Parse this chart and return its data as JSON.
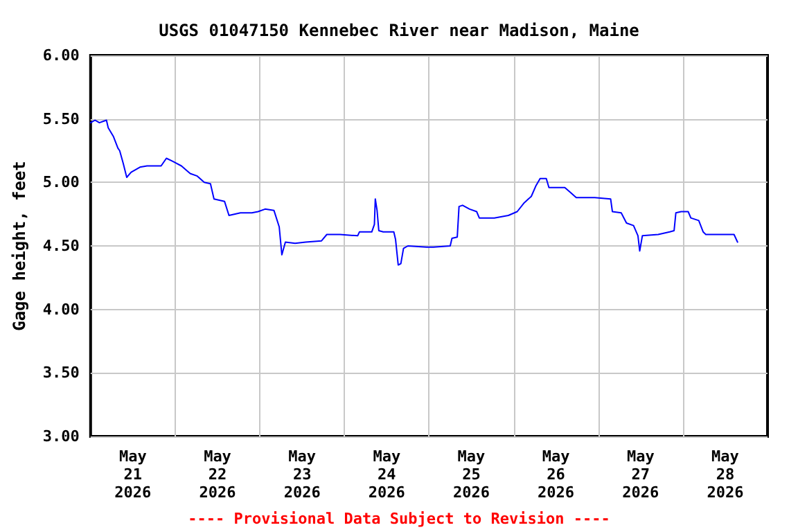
{
  "chart_data": {
    "type": "line",
    "title": "USGS 01047150 Kennebec River near Madison, Maine",
    "ylabel": "Gage height, feet",
    "annotations": [
      "---- Provisional Data Subject to Revision ----"
    ],
    "xlim": [
      "2026-05-21",
      "2026-05-29"
    ],
    "xticks": [
      {
        "value": "2026-05-21T12:00",
        "label": "May\n21\n2026"
      },
      {
        "value": "2026-05-22",
        "label": null
      },
      {
        "value": "2026-05-22T12:00",
        "label": "May\n22\n2026"
      },
      {
        "value": "2026-05-23",
        "label": null
      },
      {
        "value": "2026-05-23T12:00",
        "label": "May\n23\n2026"
      },
      {
        "value": "2026-05-24",
        "label": null
      },
      {
        "value": "2026-05-24T12:00",
        "label": "May\n24\n2026"
      },
      {
        "value": "2026-05-25",
        "label": null
      },
      {
        "value": "2026-05-25T12:00",
        "label": "May\n25\n2026"
      },
      {
        "value": "2026-05-26",
        "label": null
      },
      {
        "value": "2026-05-26T12:00",
        "label": "May\n26\n2026"
      },
      {
        "value": "2026-05-27",
        "label": null
      },
      {
        "value": "2026-05-27T12:00",
        "label": "May\n27\n2026"
      },
      {
        "value": "2026-05-28",
        "label": null
      },
      {
        "value": "2026-05-28T12:00",
        "label": "May\n28\n2026"
      }
    ],
    "ylim": [
      3,
      6
    ],
    "yticks": [
      {
        "value": 3,
        "label": "3.00"
      },
      {
        "value": 3.5,
        "label": "3.50"
      },
      {
        "value": 4,
        "label": "4.00"
      },
      {
        "value": 4.5,
        "label": "4.50"
      },
      {
        "value": 5,
        "label": "5.00"
      },
      {
        "value": 5.5,
        "label": "5.50"
      },
      {
        "value": 6,
        "label": "6.00"
      }
    ],
    "grid": true,
    "marker": "none",
    "line_style": "solid",
    "x": [
      "2026-05-21T00:00",
      "2026-05-21T01:15",
      "2026-05-21T02:30",
      "2026-05-21T04:30",
      "2026-05-21T05:00",
      "2026-05-21T06:30",
      "2026-05-21T07:45",
      "2026-05-21T08:15",
      "2026-05-21T09:15",
      "2026-05-21T10:15",
      "2026-05-21T11:30",
      "2026-05-21T14:00",
      "2026-05-21T16:00",
      "2026-05-21T20:00",
      "2026-05-21T21:30",
      "2026-05-21T23:00",
      "2026-05-22T01:45",
      "2026-05-22T04:15",
      "2026-05-22T06:15",
      "2026-05-22T08:15",
      "2026-05-22T10:00",
      "2026-05-22T11:00",
      "2026-05-22T14:00",
      "2026-05-22T15:15",
      "2026-05-22T18:30",
      "2026-05-22T21:45",
      "2026-05-22T23:30",
      "2026-05-23T01:30",
      "2026-05-23T04:00",
      "2026-05-23T05:30",
      "2026-05-23T06:15",
      "2026-05-23T07:15",
      "2026-05-23T10:00",
      "2026-05-23T13:00",
      "2026-05-23T17:30",
      "2026-05-23T19:00",
      "2026-05-23T22:45",
      "2026-05-24T03:45",
      "2026-05-24T04:15",
      "2026-05-24T07:45",
      "2026-05-24T08:30",
      "2026-05-24T08:45",
      "2026-05-24T09:15",
      "2026-05-24T09:45",
      "2026-05-24T11:00",
      "2026-05-24T14:00",
      "2026-05-24T14:30",
      "2026-05-24T15:15",
      "2026-05-24T16:00",
      "2026-05-24T16:45",
      "2026-05-24T18:00",
      "2026-05-24T23:15",
      "2026-05-25T01:15",
      "2026-05-25T06:00",
      "2026-05-25T06:30",
      "2026-05-25T08:00",
      "2026-05-25T08:30",
      "2026-05-25T09:30",
      "2026-05-25T11:30",
      "2026-05-25T13:30",
      "2026-05-25T14:15",
      "2026-05-25T18:30",
      "2026-05-25T22:30",
      "2026-05-26T01:00",
      "2026-05-26T03:00",
      "2026-05-26T05:00",
      "2026-05-26T06:15",
      "2026-05-26T07:30",
      "2026-05-26T09:15",
      "2026-05-26T10:00",
      "2026-05-26T12:00",
      "2026-05-26T14:30",
      "2026-05-26T15:45",
      "2026-05-26T17:45",
      "2026-05-26T23:00",
      "2026-05-27T03:30",
      "2026-05-27T04:00",
      "2026-05-27T06:30",
      "2026-05-27T08:00",
      "2026-05-27T10:00",
      "2026-05-27T11:15",
      "2026-05-27T11:45",
      "2026-05-27T12:30",
      "2026-05-27T17:00",
      "2026-05-27T20:15",
      "2026-05-27T21:30",
      "2026-05-27T22:00",
      "2026-05-27T23:30",
      "2026-05-28T01:30",
      "2026-05-28T02:15",
      "2026-05-28T04:30",
      "2026-05-28T05:45",
      "2026-05-28T06:30",
      "2026-05-28T12:15",
      "2026-05-28T14:30",
      "2026-05-28T15:30"
    ],
    "series": [
      {
        "color": "#0000ff",
        "values": [
          5.47,
          5.49,
          5.47,
          5.49,
          5.43,
          5.36,
          5.27,
          5.25,
          5.15,
          5.04,
          5.08,
          5.12,
          5.13,
          5.13,
          5.19,
          5.17,
          5.13,
          5.07,
          5.05,
          5.0,
          4.99,
          4.87,
          4.85,
          4.74,
          4.76,
          4.76,
          4.77,
          4.79,
          4.78,
          4.65,
          4.43,
          4.53,
          4.52,
          4.53,
          4.54,
          4.59,
          4.59,
          4.58,
          4.61,
          4.61,
          4.67,
          4.87,
          4.78,
          4.62,
          4.61,
          4.61,
          4.55,
          4.35,
          4.36,
          4.48,
          4.5,
          4.49,
          4.49,
          4.5,
          4.56,
          4.57,
          4.81,
          4.82,
          4.79,
          4.77,
          4.72,
          4.72,
          4.74,
          4.77,
          4.84,
          4.89,
          4.97,
          5.03,
          5.03,
          4.96,
          4.96,
          4.96,
          4.93,
          4.88,
          4.88,
          4.87,
          4.77,
          4.76,
          4.68,
          4.66,
          4.58,
          4.46,
          4.58,
          4.59,
          4.61,
          4.62,
          4.76,
          4.77,
          4.77,
          4.72,
          4.7,
          4.61,
          4.59,
          4.59,
          4.59,
          4.53
        ]
      }
    ]
  }
}
